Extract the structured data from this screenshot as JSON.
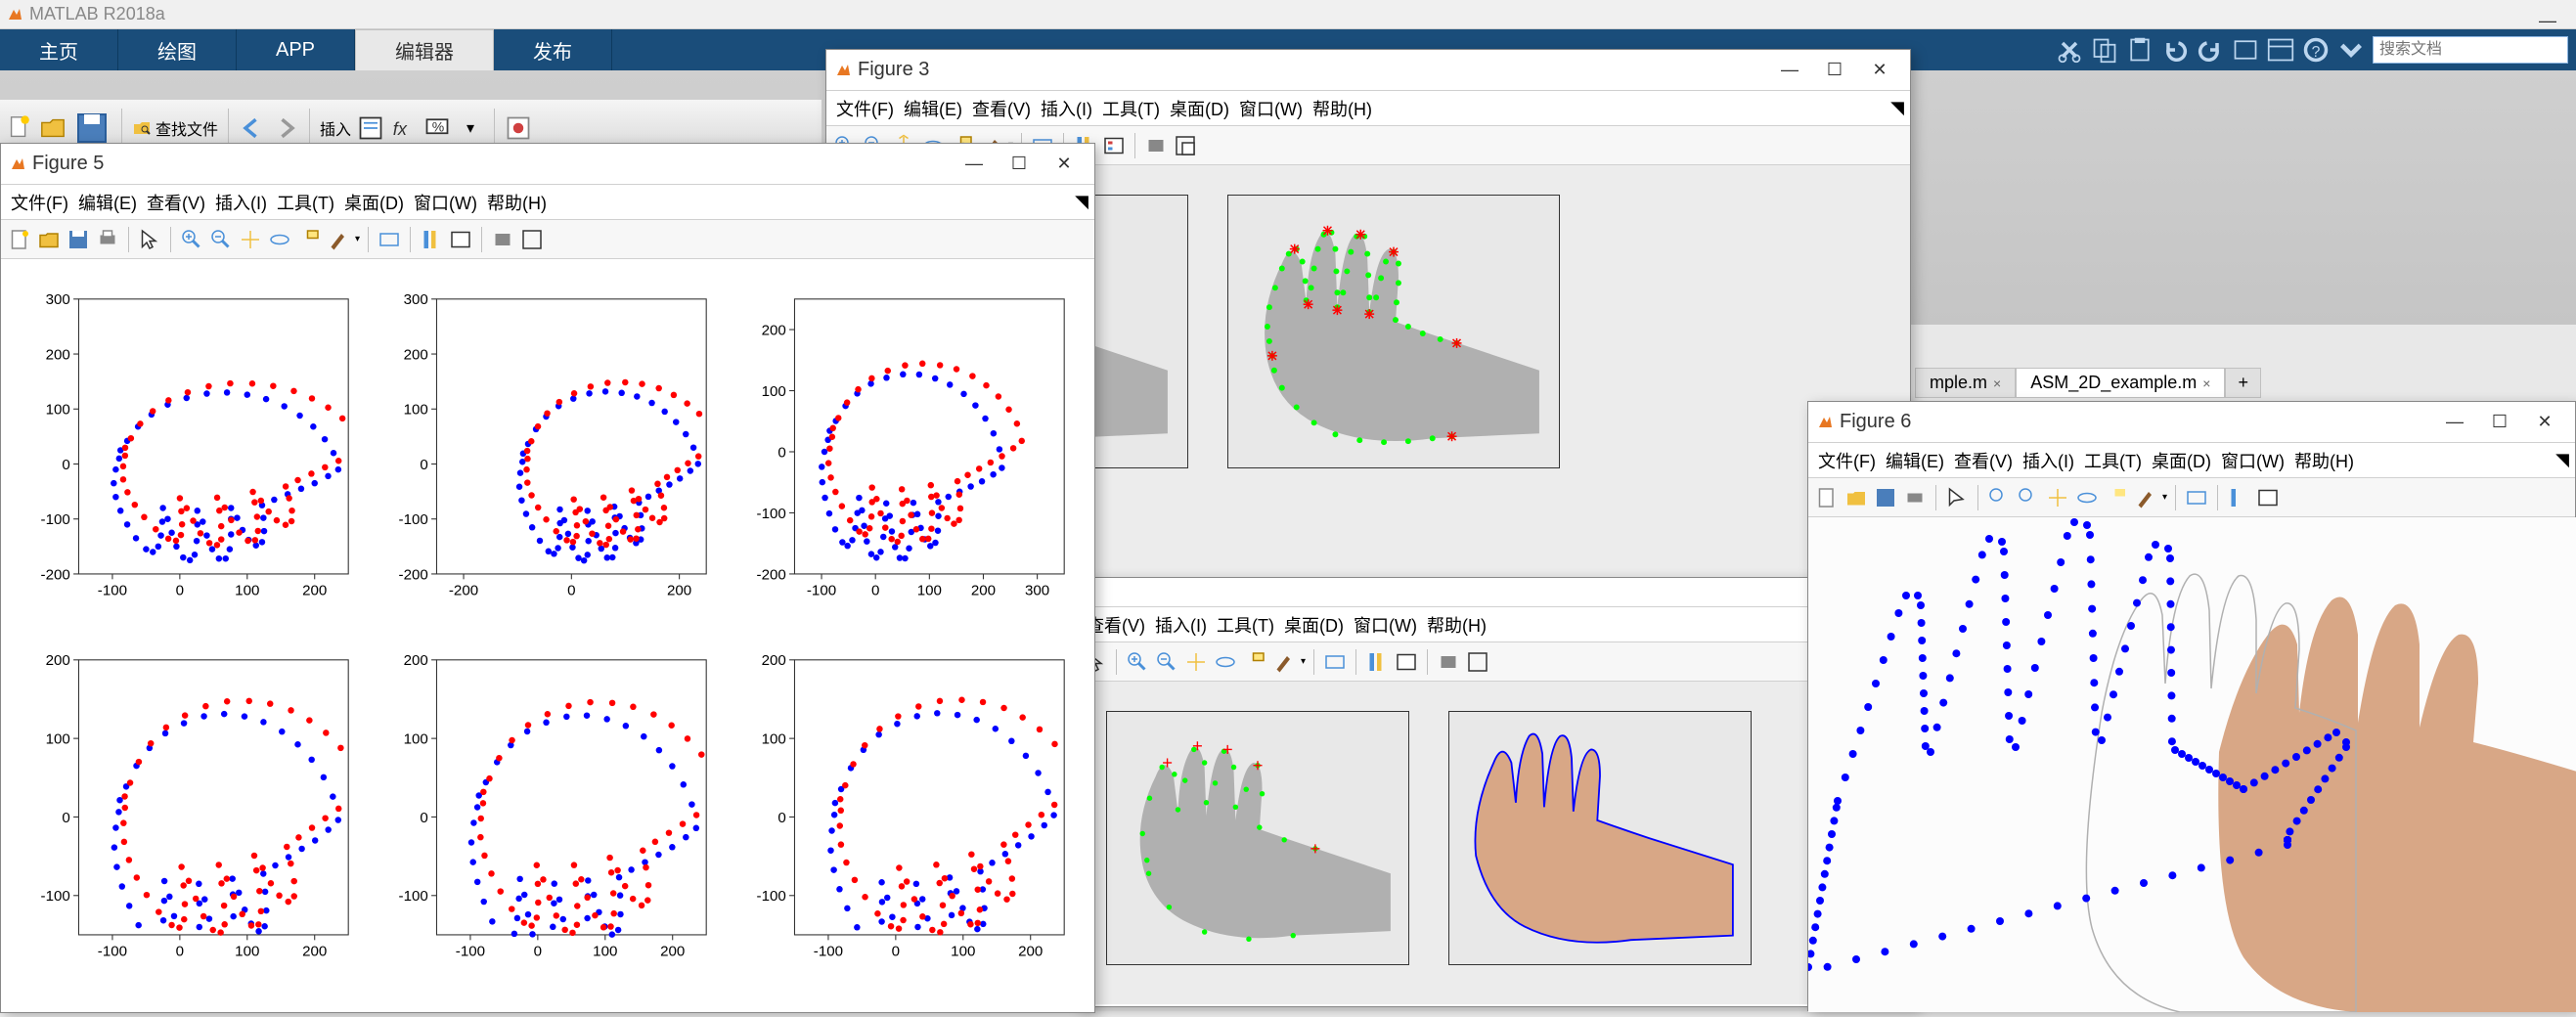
{
  "app": {
    "title": "MATLAB R2018a"
  },
  "colors": {
    "tab_dark": "#1a4d7a",
    "tab_light": "#e8e8e8",
    "blue_series": "#0000ff",
    "red_series": "#ff0000",
    "green_overlay": "#00ff00",
    "red_marker": "#ff0000",
    "grid": "#e0e0e0",
    "axis": "#333333",
    "logo_orange": "#e87722",
    "logo_blue": "#0076a8"
  },
  "main_tabs": [
    {
      "label": "主页",
      "active": true
    },
    {
      "label": "绘图",
      "active": false
    },
    {
      "label": "APP",
      "active": false
    },
    {
      "label": "编辑器",
      "active": false,
      "light": true
    },
    {
      "label": "发布",
      "active": false
    }
  ],
  "toolstrip": {
    "insert_label": "插入",
    "find_label": "查找文件",
    "icons": [
      "new-file",
      "open",
      "save",
      "find-files",
      "back",
      "forward",
      "fx",
      "comment",
      "breakpoint",
      "run"
    ]
  },
  "quick_access": [
    "cut",
    "copy",
    "paste",
    "undo",
    "redo",
    "switch",
    "layout",
    "help",
    "dropdown"
  ],
  "search": {
    "placeholder": "搜索文档"
  },
  "editor_tabs": [
    {
      "label": "mple.m",
      "active": false,
      "close": "×"
    },
    {
      "label": "ASM_2D_example.m",
      "active": true,
      "close": "×"
    },
    {
      "label": "+",
      "active": false
    }
  ],
  "figures": {
    "fig5": {
      "title": "Figure 5",
      "menus": [
        "文件(F)",
        "编辑(E)",
        "查看(V)",
        "插入(I)",
        "工具(T)",
        "桌面(D)",
        "窗口(W)",
        "帮助(H)"
      ],
      "subplots": {
        "rows": 2,
        "cols": 3,
        "panels": [
          {
            "xlim": [
              -150,
              250
            ],
            "ylim": [
              -200,
              300
            ],
            "xticks": [
              -100,
              0,
              100,
              200
            ],
            "yticks": [
              -200,
              -100,
              0,
              100,
              200,
              300
            ]
          },
          {
            "xlim": [
              -250,
              250
            ],
            "ylim": [
              -200,
              300
            ],
            "xticks": [
              -200,
              0,
              200
            ],
            "yticks": [
              -200,
              -100,
              0,
              100,
              200,
              300
            ]
          },
          {
            "xlim": [
              -150,
              350
            ],
            "ylim": [
              -200,
              250
            ],
            "xticks": [
              -100,
              0,
              100,
              200,
              300
            ],
            "yticks": [
              -200,
              -100,
              0,
              100,
              200
            ]
          },
          {
            "xlim": [
              -150,
              250
            ],
            "ylim": [
              -150,
              200
            ],
            "xticks": [
              -100,
              0,
              100,
              200
            ],
            "yticks": [
              -100,
              0,
              100,
              200
            ]
          },
          {
            "xlim": [
              -150,
              250
            ],
            "ylim": [
              -150,
              200
            ],
            "xticks": [
              -100,
              0,
              100,
              200
            ],
            "yticks": [
              -100,
              0,
              100,
              200
            ]
          },
          {
            "xlim": [
              -150,
              250
            ],
            "ylim": [
              -150,
              200
            ],
            "xticks": [
              -100,
              0,
              100,
              200
            ],
            "yticks": [
              -100,
              0,
              100,
              200
            ]
          }
        ],
        "marker": "dot",
        "marker_size": 3,
        "series_colors": [
          "#0000ff",
          "#ff0000"
        ]
      }
    },
    "fig3": {
      "title": "Figure 3",
      "menus": [
        "文件(F)",
        "编辑(E)",
        "查看(V)",
        "插入(I)",
        "工具(T)",
        "桌面(D)",
        "窗口(W)",
        "帮助(H)"
      ],
      "panels": 2,
      "overlay": {
        "contour_color": "#00ff00",
        "landmark_color": "#ff0000",
        "landmark_marker": "*"
      }
    },
    "fig_other": {
      "menus_partial": [
        "查看(V)",
        "插入(I)",
        "工具(T)",
        "桌面(D)",
        "窗口(W)",
        "帮助(H)"
      ],
      "panels": 2,
      "overlay_a": {
        "contour_color": "#00ff00",
        "landmark_color": "#ff0000"
      },
      "overlay_b": {
        "contour_color": "#0000ff"
      }
    },
    "fig6": {
      "title": "Figure 6",
      "menus": [
        "文件(F)",
        "编辑(E)",
        "查看(V)",
        "插入(I)",
        "工具(T)",
        "桌面(D)",
        "窗口(W)",
        "帮助(H)"
      ],
      "content": {
        "type": "photo_with_dots",
        "dot_color": "#0000ff",
        "dot_size": 6,
        "background": "#ffffff",
        "skin_tone": "#d8a786"
      }
    }
  },
  "toolbar_icons": [
    "new",
    "open",
    "save",
    "print",
    "pointer",
    "zoom-in",
    "zoom-out",
    "pan",
    "rotate3d",
    "datacursor",
    "brush",
    "link",
    "insert-colorbar",
    "insert-legend",
    "hide",
    "dock"
  ]
}
